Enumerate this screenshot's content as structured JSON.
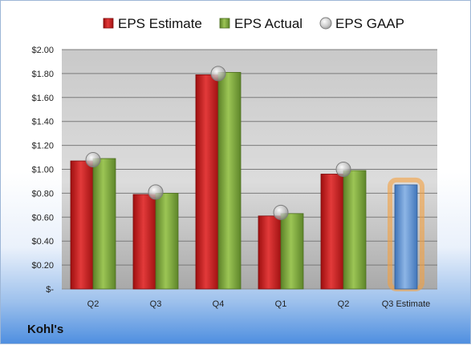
{
  "chart_data": {
    "type": "bar",
    "categories": [
      "Q2",
      "Q3",
      "Q4",
      "Q1",
      "Q2",
      "Q3 Estimate"
    ],
    "series": [
      {
        "name": "EPS Estimate",
        "color": "#cc1f1f",
        "values": [
          1.07,
          0.79,
          1.79,
          0.61,
          0.96,
          null
        ]
      },
      {
        "name": "EPS Actual",
        "color": "#7da83a",
        "values": [
          1.09,
          0.8,
          1.81,
          0.63,
          0.99,
          null
        ]
      },
      {
        "name": "EPS GAAP",
        "color": "#b8b8b8",
        "marker": "circle",
        "values": [
          1.08,
          0.81,
          1.8,
          0.64,
          1.0,
          null
        ]
      },
      {
        "color": "#5b8fd0",
        "highlight_color": "#f4a040",
        "values": [
          null,
          null,
          null,
          null,
          null,
          0.87
        ]
      }
    ],
    "y_ticks": [
      "$2.00",
      "$1.80",
      "$1.60",
      "$1.40",
      "$1.20",
      "$1.00",
      "$0.80",
      "$0.60",
      "$0.40",
      "$0.20",
      "$-"
    ],
    "ylim": [
      0,
      2.0
    ],
    "grid": true,
    "legend_position": "top",
    "company": "Kohl's"
  }
}
